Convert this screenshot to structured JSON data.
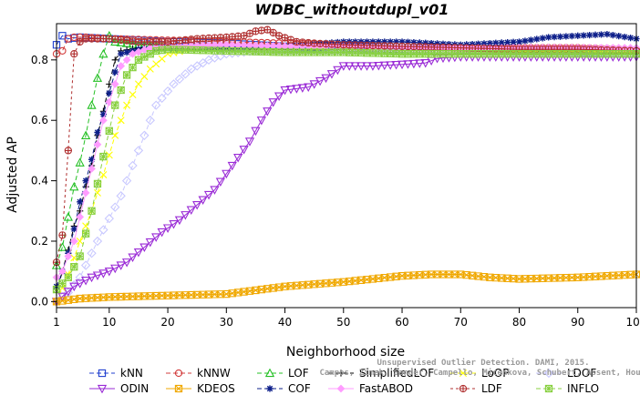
{
  "chart_data": {
    "type": "line",
    "title": "WDBC_withoutdupl_v01",
    "xlabel": "Neighborhood size",
    "ylabel": "Adjusted AP",
    "xlim": [
      1,
      100
    ],
    "ylim": [
      -0.02,
      0.92
    ],
    "xticks": [
      1,
      10,
      20,
      30,
      40,
      50,
      60,
      70,
      80,
      90,
      100
    ],
    "yticks": [
      0.0,
      0.2,
      0.4,
      0.6,
      0.8
    ],
    "ytick_labels": [
      "0.0",
      "0.2",
      "0.4",
      "0.6",
      "0.8"
    ],
    "grid": false,
    "legend_position": "bottom",
    "watermark": [
      "Campos, Zimek, Sander, Campello, Micenkova, Schubert, Assent, Houle",
      "Unsupervised Outlier Detection. DAMI, 2015."
    ],
    "series": [
      {
        "name": "kNN",
        "color": "#1f3fcf",
        "marker": "square",
        "dash": "5,3",
        "points": [
          [
            1,
            0.85
          ],
          [
            2,
            0.88
          ],
          [
            3,
            0.87
          ],
          [
            5,
            0.875
          ],
          [
            10,
            0.87
          ],
          [
            20,
            0.86
          ],
          [
            30,
            0.855
          ],
          [
            40,
            0.845
          ],
          [
            50,
            0.84
          ],
          [
            60,
            0.835
          ],
          [
            70,
            0.83
          ],
          [
            80,
            0.83
          ],
          [
            90,
            0.825
          ],
          [
            100,
            0.82
          ]
        ]
      },
      {
        "name": "kNNW",
        "color": "#d23c3c",
        "marker": "circle",
        "dash": "5,3",
        "points": [
          [
            1,
            0.82
          ],
          [
            2,
            0.83
          ],
          [
            3,
            0.87
          ],
          [
            4,
            0.875
          ],
          [
            6,
            0.875
          ],
          [
            10,
            0.87
          ],
          [
            20,
            0.865
          ],
          [
            30,
            0.86
          ],
          [
            40,
            0.855
          ],
          [
            50,
            0.85
          ],
          [
            60,
            0.845
          ],
          [
            70,
            0.84
          ],
          [
            80,
            0.84
          ],
          [
            90,
            0.84
          ],
          [
            100,
            0.835
          ]
        ]
      },
      {
        "name": "LOF",
        "color": "#25c025",
        "marker": "triangle-up",
        "dash": "5,3",
        "points": [
          [
            1,
            0.12
          ],
          [
            2,
            0.18
          ],
          [
            3,
            0.28
          ],
          [
            4,
            0.38
          ],
          [
            5,
            0.46
          ],
          [
            6,
            0.55
          ],
          [
            7,
            0.65
          ],
          [
            8,
            0.74
          ],
          [
            9,
            0.82
          ],
          [
            10,
            0.88
          ],
          [
            11,
            0.86
          ],
          [
            15,
            0.85
          ],
          [
            20,
            0.845
          ],
          [
            30,
            0.84
          ],
          [
            40,
            0.84
          ],
          [
            50,
            0.835
          ],
          [
            60,
            0.83
          ],
          [
            70,
            0.83
          ],
          [
            80,
            0.83
          ],
          [
            90,
            0.83
          ],
          [
            100,
            0.83
          ]
        ]
      },
      {
        "name": "SimplifiedLOF",
        "color": "#000000",
        "marker": "plus",
        "dash": "5,3",
        "points": [
          [
            1,
            0.03
          ],
          [
            2,
            0.1
          ],
          [
            3,
            0.17
          ],
          [
            4,
            0.25
          ],
          [
            5,
            0.3
          ],
          [
            6,
            0.38
          ],
          [
            7,
            0.45
          ],
          [
            8,
            0.55
          ],
          [
            9,
            0.63
          ],
          [
            10,
            0.72
          ],
          [
            11,
            0.8
          ],
          [
            12,
            0.83
          ],
          [
            15,
            0.84
          ],
          [
            20,
            0.84
          ],
          [
            30,
            0.835
          ],
          [
            40,
            0.835
          ],
          [
            50,
            0.835
          ],
          [
            60,
            0.83
          ],
          [
            70,
            0.83
          ],
          [
            80,
            0.83
          ],
          [
            90,
            0.83
          ],
          [
            100,
            0.83
          ]
        ]
      },
      {
        "name": "LoOP",
        "color": "#ffff00",
        "marker": "x",
        "dash": "5,3",
        "points": [
          [
            1,
            0.0
          ],
          [
            3,
            0.09
          ],
          [
            5,
            0.2
          ],
          [
            7,
            0.3
          ],
          [
            9,
            0.42
          ],
          [
            11,
            0.55
          ],
          [
            13,
            0.65
          ],
          [
            15,
            0.72
          ],
          [
            17,
            0.77
          ],
          [
            20,
            0.82
          ],
          [
            25,
            0.84
          ],
          [
            30,
            0.84
          ],
          [
            40,
            0.84
          ],
          [
            50,
            0.84
          ],
          [
            60,
            0.835
          ],
          [
            70,
            0.835
          ],
          [
            80,
            0.83
          ],
          [
            90,
            0.83
          ],
          [
            100,
            0.83
          ]
        ]
      },
      {
        "name": "LDOF",
        "color": "#c8c8ff",
        "marker": "diamond",
        "dash": "5,3",
        "points": [
          [
            1,
            0.0
          ],
          [
            3,
            0.03
          ],
          [
            5,
            0.08
          ],
          [
            8,
            0.2
          ],
          [
            12,
            0.35
          ],
          [
            15,
            0.5
          ],
          [
            18,
            0.65
          ],
          [
            21,
            0.72
          ],
          [
            24,
            0.77
          ],
          [
            27,
            0.8
          ],
          [
            30,
            0.82
          ],
          [
            35,
            0.83
          ],
          [
            40,
            0.83
          ],
          [
            50,
            0.83
          ],
          [
            60,
            0.83
          ],
          [
            70,
            0.83
          ],
          [
            80,
            0.825
          ],
          [
            90,
            0.825
          ],
          [
            100,
            0.82
          ]
        ]
      },
      {
        "name": "ODIN",
        "color": "#9a2bd6",
        "marker": "triangle-down",
        "dash": "",
        "points": [
          [
            1,
            0.0
          ],
          [
            4,
            0.05
          ],
          [
            7,
            0.08
          ],
          [
            10,
            0.1
          ],
          [
            13,
            0.13
          ],
          [
            16,
            0.18
          ],
          [
            19,
            0.23
          ],
          [
            22,
            0.27
          ],
          [
            25,
            0.32
          ],
          [
            28,
            0.37
          ],
          [
            31,
            0.45
          ],
          [
            34,
            0.53
          ],
          [
            36,
            0.6
          ],
          [
            38,
            0.66
          ],
          [
            40,
            0.7
          ],
          [
            44,
            0.71
          ],
          [
            47,
            0.74
          ],
          [
            50,
            0.78
          ],
          [
            55,
            0.78
          ],
          [
            60,
            0.785
          ],
          [
            64,
            0.79
          ],
          [
            66,
            0.805
          ],
          [
            70,
            0.81
          ],
          [
            75,
            0.81
          ],
          [
            80,
            0.81
          ],
          [
            90,
            0.81
          ],
          [
            100,
            0.81
          ]
        ]
      },
      {
        "name": "KDEOS",
        "color": "#f0a800",
        "marker": "square-x",
        "dash": "",
        "points": [
          [
            1,
            0.0
          ],
          [
            5,
            0.01
          ],
          [
            10,
            0.015
          ],
          [
            20,
            0.02
          ],
          [
            30,
            0.025
          ],
          [
            40,
            0.05
          ],
          [
            50,
            0.065
          ],
          [
            55,
            0.075
          ],
          [
            60,
            0.085
          ],
          [
            65,
            0.09
          ],
          [
            70,
            0.09
          ],
          [
            75,
            0.08
          ],
          [
            80,
            0.075
          ],
          [
            90,
            0.08
          ],
          [
            100,
            0.09
          ]
        ]
      },
      {
        "name": "COF",
        "color": "#0d1f8a",
        "marker": "asterisk",
        "dash": "5,3",
        "points": [
          [
            1,
            0.05
          ],
          [
            2,
            0.1
          ],
          [
            3,
            0.16
          ],
          [
            4,
            0.24
          ],
          [
            5,
            0.33
          ],
          [
            6,
            0.4
          ],
          [
            7,
            0.47
          ],
          [
            8,
            0.56
          ],
          [
            9,
            0.62
          ],
          [
            10,
            0.69
          ],
          [
            11,
            0.76
          ],
          [
            12,
            0.82
          ],
          [
            15,
            0.835
          ],
          [
            20,
            0.84
          ],
          [
            30,
            0.84
          ],
          [
            40,
            0.845
          ],
          [
            50,
            0.86
          ],
          [
            60,
            0.86
          ],
          [
            70,
            0.85
          ],
          [
            80,
            0.86
          ],
          [
            85,
            0.875
          ],
          [
            90,
            0.88
          ],
          [
            95,
            0.885
          ],
          [
            100,
            0.87
          ]
        ]
      },
      {
        "name": "FastABOD",
        "color": "#ff9cff",
        "marker": "diamond-filled",
        "dash": "",
        "points": [
          [
            1,
            0.08
          ],
          [
            2,
            0.1
          ],
          [
            3,
            0.15
          ],
          [
            4,
            0.2
          ],
          [
            5,
            0.28
          ],
          [
            6,
            0.36
          ],
          [
            7,
            0.44
          ],
          [
            8,
            0.52
          ],
          [
            9,
            0.6
          ],
          [
            10,
            0.66
          ],
          [
            11,
            0.72
          ],
          [
            12,
            0.78
          ],
          [
            14,
            0.82
          ],
          [
            17,
            0.84
          ],
          [
            20,
            0.845
          ],
          [
            30,
            0.85
          ],
          [
            40,
            0.845
          ],
          [
            50,
            0.845
          ],
          [
            60,
            0.84
          ],
          [
            70,
            0.84
          ],
          [
            80,
            0.84
          ],
          [
            90,
            0.84
          ],
          [
            100,
            0.84
          ]
        ]
      },
      {
        "name": "LDF",
        "color": "#b03030",
        "marker": "circle-plus",
        "dash": "3,3",
        "points": [
          [
            1,
            0.13
          ],
          [
            2,
            0.22
          ],
          [
            3,
            0.5
          ],
          [
            4,
            0.82
          ],
          [
            5,
            0.86
          ],
          [
            6,
            0.87
          ],
          [
            10,
            0.87
          ],
          [
            15,
            0.86
          ],
          [
            20,
            0.86
          ],
          [
            25,
            0.87
          ],
          [
            30,
            0.875
          ],
          [
            33,
            0.88
          ],
          [
            35,
            0.895
          ],
          [
            37,
            0.9
          ],
          [
            39,
            0.88
          ],
          [
            42,
            0.86
          ],
          [
            45,
            0.855
          ],
          [
            50,
            0.85
          ],
          [
            60,
            0.845
          ],
          [
            70,
            0.84
          ],
          [
            80,
            0.835
          ],
          [
            90,
            0.835
          ],
          [
            100,
            0.83
          ]
        ]
      },
      {
        "name": "INFLO",
        "color": "#88d040",
        "marker": "star-box",
        "dash": "5,3",
        "points": [
          [
            1,
            0.04
          ],
          [
            3,
            0.08
          ],
          [
            5,
            0.15
          ],
          [
            7,
            0.3
          ],
          [
            9,
            0.48
          ],
          [
            11,
            0.65
          ],
          [
            13,
            0.75
          ],
          [
            15,
            0.8
          ],
          [
            18,
            0.83
          ],
          [
            20,
            0.835
          ],
          [
            30,
            0.83
          ],
          [
            40,
            0.825
          ],
          [
            50,
            0.825
          ],
          [
            60,
            0.82
          ],
          [
            70,
            0.82
          ],
          [
            80,
            0.82
          ],
          [
            90,
            0.82
          ],
          [
            100,
            0.82
          ]
        ]
      }
    ]
  }
}
